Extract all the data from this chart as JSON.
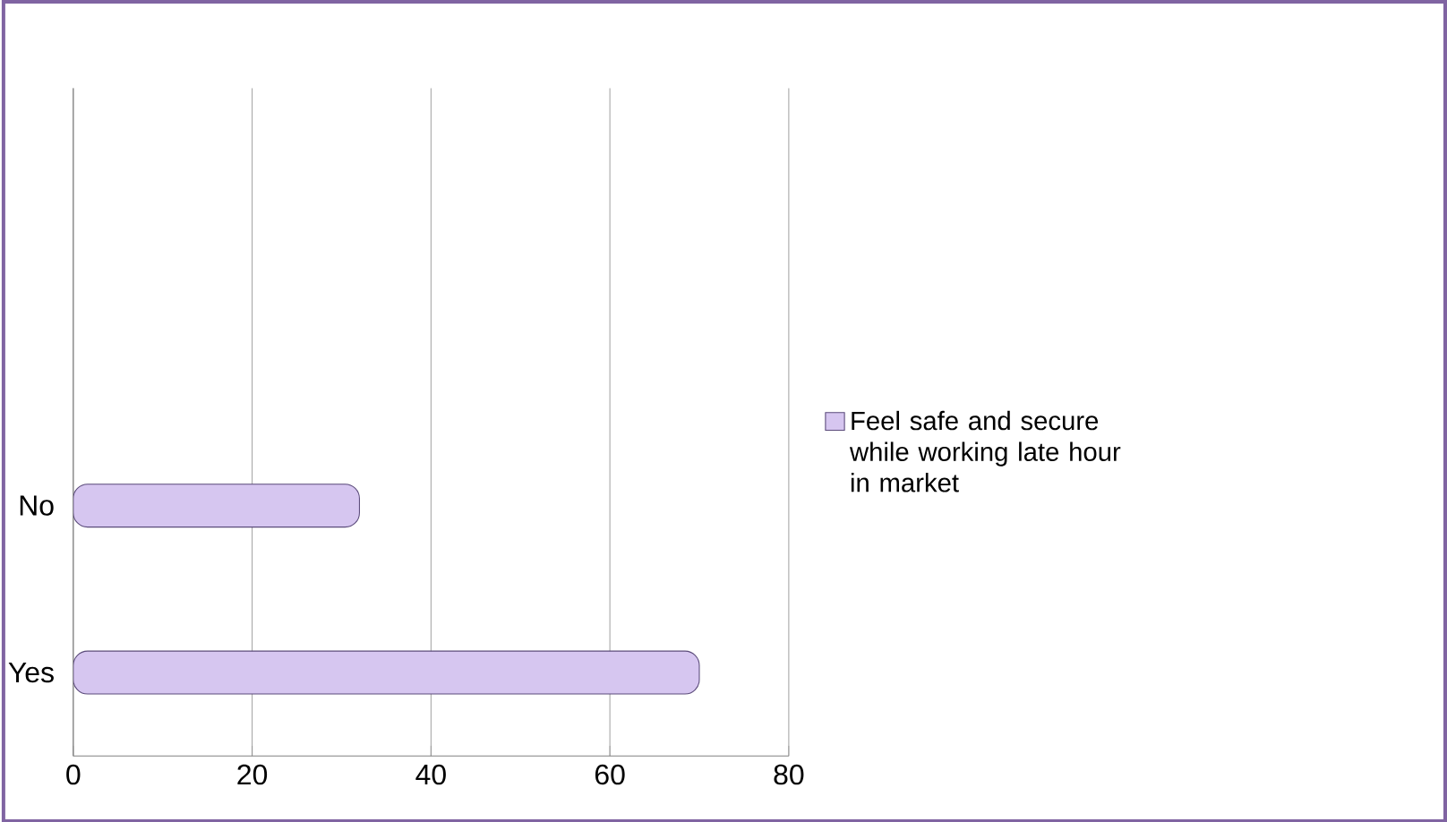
{
  "chart_data": {
    "type": "bar",
    "orientation": "horizontal",
    "categories": [
      null,
      null,
      "No",
      "Yes"
    ],
    "series": [
      {
        "name": "Feel safe and secure while working late hour in market",
        "color": "#d6c6f0",
        "values": [
          null,
          null,
          32,
          70
        ]
      }
    ],
    "xlim": [
      0,
      80
    ],
    "xticks": [
      0,
      20,
      40,
      60,
      80
    ],
    "grid": "x",
    "legend": "right"
  }
}
